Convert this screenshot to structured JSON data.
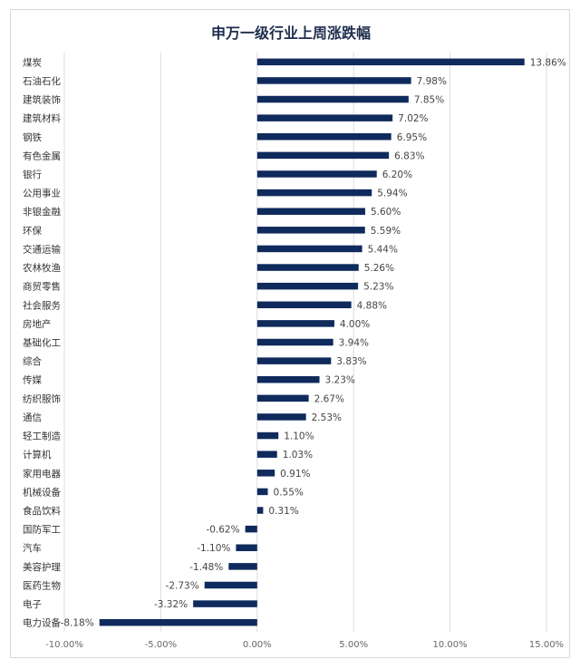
{
  "chart_data": {
    "type": "bar",
    "orientation": "horizontal",
    "title": "申万一级行业上周涨跌幅",
    "categories": [
      "煤炭",
      "石油石化",
      "建筑装饰",
      "建筑材料",
      "钢铁",
      "有色金属",
      "银行",
      "公用事业",
      "非银金融",
      "环保",
      "交通运输",
      "农林牧渔",
      "商贸零售",
      "社会服务",
      "房地产",
      "基础化工",
      "综合",
      "传媒",
      "纺织服饰",
      "通信",
      "轻工制造",
      "计算机",
      "家用电器",
      "机械设备",
      "食品饮料",
      "国防军工",
      "汽车",
      "美容护理",
      "医药生物",
      "电子",
      "电力设备"
    ],
    "values": [
      13.86,
      7.98,
      7.85,
      7.02,
      6.95,
      6.83,
      6.2,
      5.94,
      5.6,
      5.59,
      5.44,
      5.26,
      5.23,
      4.88,
      4.0,
      3.94,
      3.83,
      3.23,
      2.67,
      2.53,
      1.1,
      1.03,
      0.91,
      0.55,
      0.31,
      -0.62,
      -1.1,
      -1.48,
      -2.73,
      -3.32,
      -8.18
    ],
    "value_labels": [
      "13.86%",
      "7.98%",
      "7.85%",
      "7.02%",
      "6.95%",
      "6.83%",
      "6.20%",
      "5.94%",
      "5.60%",
      "5.59%",
      "5.44%",
      "5.26%",
      "5.23%",
      "4.88%",
      "4.00%",
      "3.94%",
      "3.83%",
      "3.23%",
      "2.67%",
      "2.53%",
      "1.10%",
      "1.03%",
      "0.91%",
      "0.55%",
      "0.31%",
      "-0.62%",
      "-1.10%",
      "-1.48%",
      "-2.73%",
      "-3.32%",
      "-8.18%"
    ],
    "xlim": [
      -10,
      15
    ],
    "x_ticks": [
      -10,
      -5,
      0,
      5,
      10,
      15
    ],
    "x_tick_labels": [
      "-10.00%",
      "-5.00%",
      "0.00%",
      "5.00%",
      "10.00%",
      "15.00%"
    ],
    "grid": "vertical",
    "bar_color": "#0f2a5c",
    "legend": "none"
  }
}
